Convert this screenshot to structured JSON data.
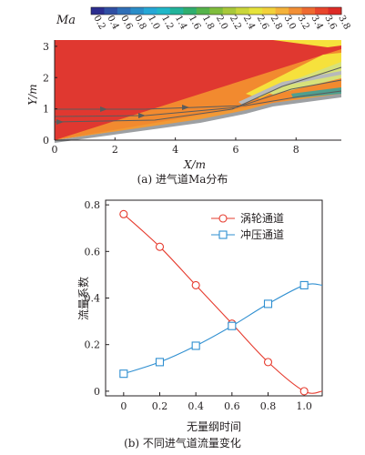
{
  "figure_a": {
    "caption": "(a) 进气道Ma分布",
    "colorbar_label": "Ma",
    "colorbar_ticks": [
      "0.2",
      "0.4",
      "0.6",
      "0.8",
      "1.0",
      "1.2",
      "1.4",
      "1.6",
      "1.8",
      "2.0",
      "2.2",
      "2.4",
      "2.6",
      "2.8",
      "3.0",
      "3.2",
      "3.4",
      "3.6",
      "3.8"
    ],
    "colorbar_colors": [
      "#2b2d8f",
      "#2f4ea3",
      "#2f6fb7",
      "#2a8dc8",
      "#25a7d6",
      "#20b7c8",
      "#22b39a",
      "#2fae6e",
      "#55b34a",
      "#7fbd3c",
      "#a8c83a",
      "#cad63a",
      "#e6e33b",
      "#f2d13b",
      "#f4b23a",
      "#f28f35",
      "#ee6a30",
      "#e8452b",
      "#dd2b27"
    ],
    "xlabel": "X/m",
    "ylabel": "Y/m",
    "x_ticks": [
      "0",
      "2",
      "4",
      "6",
      "8"
    ],
    "y_ticks": [
      "0",
      "1",
      "2",
      "3"
    ],
    "colors": {
      "freestream": "#e03830",
      "compressed": "#f28a2f",
      "hot": "#f6e13c",
      "wall": "#b7b9bb",
      "inner": "#4f9f8f",
      "streamline": "#5b5b5b"
    }
  },
  "figure_b": {
    "caption": "(b) 不同进气道流量变化",
    "xlabel": "无量纲时间",
    "ylabel": "流量系数",
    "legend": [
      {
        "name": "涡轮通道",
        "color": "#e63b2e",
        "marker": "circle"
      },
      {
        "name": "冲压通道",
        "color": "#2f8fd1",
        "marker": "square"
      }
    ],
    "x_ticks": [
      "0",
      "0.2",
      "0.4",
      "0.6",
      "0.8",
      "1.0"
    ],
    "y_ticks": [
      "0",
      "0.2",
      "0.4",
      "0.6",
      "0.8"
    ]
  },
  "chart_data": [
    {
      "type": "heatmap",
      "title": "",
      "colorbar_label": "Ma",
      "colorbar_range": [
        0.2,
        3.8
      ],
      "xlabel": "X/m",
      "ylabel": "Y/m",
      "xlim": [
        0,
        9.5
      ],
      "ylim": [
        0,
        3.2
      ]
    },
    {
      "type": "line",
      "xlabel": "无量纲时间",
      "ylabel": "流量系数",
      "xlim": [
        -0.1,
        1.1
      ],
      "ylim": [
        -0.02,
        0.82
      ],
      "legend_position": "top-right",
      "x": [
        0,
        0.2,
        0.4,
        0.6,
        0.8,
        1.0
      ],
      "series": [
        {
          "name": "涡轮通道",
          "marker": "circle",
          "values": [
            0.76,
            0.62,
            0.455,
            0.29,
            0.125,
            0.0
          ]
        },
        {
          "name": "冲压通道",
          "marker": "square",
          "values": [
            0.075,
            0.125,
            0.195,
            0.28,
            0.375,
            0.455
          ]
        }
      ]
    }
  ]
}
